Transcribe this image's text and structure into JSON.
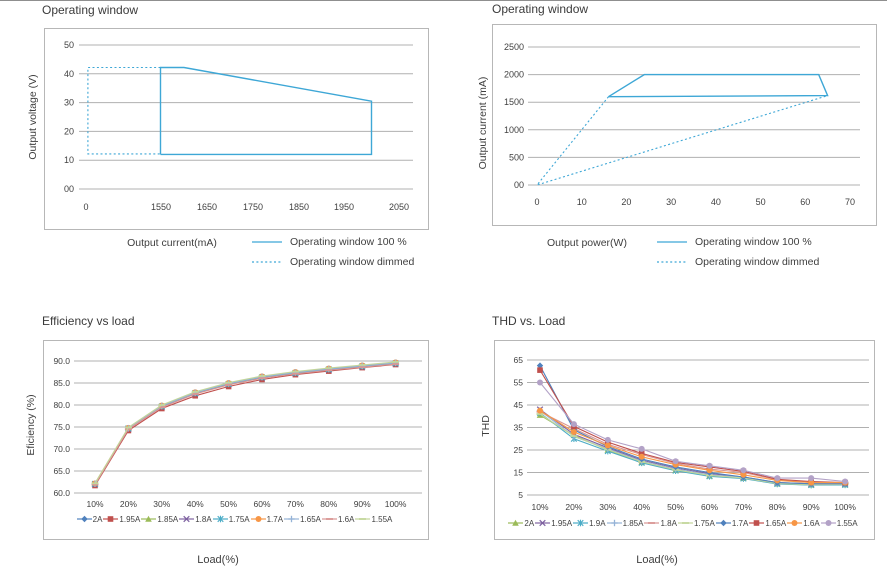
{
  "colors": {
    "accent_blue": "#3EA7D6",
    "grid": "#b0b0b0",
    "box_border": "#b7b7b7",
    "text": "#3f3f3f",
    "top_rule": "#8f8f8f"
  },
  "chart_data": [
    {
      "type": "line",
      "title": "Operating window",
      "xlabel": "Output current(mA)",
      "ylabel": "Output voltage (V)",
      "x_ticks": [
        "0",
        "1550",
        "1650",
        "1750",
        "1850",
        "1950",
        "2050"
      ],
      "x_tick_values": [
        0,
        1550,
        1650,
        1750,
        1850,
        1950,
        2050
      ],
      "y_ticks": [
        "00",
        "10",
        "20",
        "30",
        "40",
        "50"
      ],
      "y_tick_values": [
        0,
        10,
        20,
        30,
        40,
        50
      ],
      "ylim": [
        0,
        50
      ],
      "line_color": "#3EA7D6",
      "legend": [
        {
          "label": "Operating window 100 %",
          "marker": "solid-line",
          "color": "#3EA7D6"
        },
        {
          "label": "Operating window dimmed",
          "marker": "dotted-line",
          "color": "#3EA7D6"
        }
      ],
      "series": [
        {
          "name": "Operating window 100 %",
          "style": "solid",
          "points": [
            [
              1540,
              12
            ],
            [
              1540,
              42.2
            ],
            [
              1600,
              42.2
            ],
            [
              2000,
              30.5
            ],
            [
              2000,
              12
            ],
            [
              1540,
              12
            ]
          ]
        },
        {
          "name": "Operating window dimmed",
          "style": "dotted",
          "points": [
            [
              1540,
              42.2
            ],
            [
              40,
              42.2
            ],
            [
              40,
              12.2
            ],
            [
              1540,
              12.2
            ]
          ]
        }
      ]
    },
    {
      "type": "line",
      "title": "Operating window",
      "xlabel": "Output power(W)",
      "ylabel": "Output current  (mA)",
      "x_ticks": [
        "0",
        "10",
        "20",
        "30",
        "40",
        "50",
        "60",
        "70"
      ],
      "x_tick_values": [
        0,
        10,
        20,
        30,
        40,
        50,
        60,
        70
      ],
      "y_ticks": [
        "00",
        "500",
        "1000",
        "1500",
        "2000",
        "2500"
      ],
      "y_tick_values": [
        0,
        500,
        1000,
        1500,
        2000,
        2500
      ],
      "ylim": [
        0,
        2500
      ],
      "line_color": "#3EA7D6",
      "legend": [
        {
          "label": "Operating window 100 %",
          "marker": "solid-line",
          "color": "#3EA7D6"
        },
        {
          "label": "Operating window dimmed",
          "marker": "dotted-line",
          "color": "#3EA7D6"
        }
      ],
      "series": [
        {
          "name": "Operating window 100 %",
          "style": "solid",
          "points": [
            [
              16,
              1600
            ],
            [
              24,
              2000
            ],
            [
              63,
              2000
            ],
            [
              65,
              1620
            ],
            [
              16,
              1600
            ]
          ]
        },
        {
          "name": "Operating window dimmed",
          "style": "dotted",
          "points": [
            [
              16,
              1600
            ],
            [
              0,
              0
            ],
            [
              65,
              1620
            ]
          ]
        }
      ]
    },
    {
      "type": "line",
      "title": "Efficiency vs load",
      "xlabel": "Load(%)",
      "ylabel": "Eficiency (%)",
      "categories": [
        "10%",
        "20%",
        "30%",
        "40%",
        "50%",
        "60%",
        "70%",
        "80%",
        "90%",
        "100%"
      ],
      "y_ticks": [
        "60.0",
        "65.0",
        "70.0",
        "75.0",
        "80.0",
        "85.0",
        "90.0"
      ],
      "y_tick_values": [
        60,
        65,
        70,
        75,
        80,
        85,
        90
      ],
      "ylim": [
        60,
        90
      ],
      "series": [
        {
          "name": "2A",
          "color": "#4F81BD",
          "marker": "diamond",
          "values": [
            62.0,
            74.6,
            79.6,
            82.6,
            84.7,
            86.2,
            87.2,
            88.0,
            88.7,
            89.4
          ]
        },
        {
          "name": "1.95A",
          "color": "#C0504D",
          "marker": "square",
          "values": [
            61.7,
            74.2,
            79.2,
            82.1,
            84.2,
            85.8,
            86.9,
            87.7,
            88.5,
            89.2
          ]
        },
        {
          "name": "1.85A",
          "color": "#9BBB59",
          "marker": "triangle",
          "values": [
            62.1,
            74.7,
            79.7,
            82.7,
            84.8,
            86.3,
            87.3,
            88.1,
            88.8,
            89.5
          ]
        },
        {
          "name": "1.8A",
          "color": "#8064A2",
          "marker": "x",
          "values": [
            62.0,
            74.6,
            79.6,
            82.6,
            84.7,
            86.2,
            87.2,
            88.0,
            88.7,
            89.4
          ]
        },
        {
          "name": "1.75A",
          "color": "#4BACC6",
          "marker": "asterisk",
          "values": [
            62.1,
            74.7,
            79.7,
            82.7,
            84.8,
            86.3,
            87.3,
            88.1,
            88.8,
            89.5
          ]
        },
        {
          "name": "1.7A",
          "color": "#F79646",
          "marker": "circle",
          "values": [
            62.2,
            74.8,
            79.9,
            82.9,
            85.0,
            86.5,
            87.5,
            88.3,
            89.0,
            89.7
          ]
        },
        {
          "name": "1.65A",
          "color": "#95B3D7",
          "marker": "plus",
          "values": [
            62.1,
            74.7,
            79.8,
            82.8,
            84.9,
            86.4,
            87.4,
            88.2,
            88.9,
            89.6
          ]
        },
        {
          "name": "1.6A",
          "color": "#D99694",
          "marker": "dash",
          "values": [
            61.9,
            74.5,
            79.5,
            82.5,
            84.6,
            86.1,
            87.1,
            87.9,
            88.6,
            89.3
          ]
        },
        {
          "name": "1.55A",
          "color": "#C3D69B",
          "marker": "dash",
          "values": [
            62.2,
            74.9,
            80.0,
            83.0,
            85.1,
            86.6,
            87.6,
            88.4,
            89.1,
            89.8
          ]
        }
      ]
    },
    {
      "type": "line",
      "title": "THD vs. Load",
      "xlabel": "Load(%)",
      "ylabel": "THD",
      "categories": [
        "10%",
        "20%",
        "30%",
        "40%",
        "50%",
        "60%",
        "70%",
        "80%",
        "90%",
        "100%"
      ],
      "y_ticks": [
        "5",
        "15",
        "25",
        "35",
        "45",
        "55",
        "65"
      ],
      "y_tick_values": [
        5,
        15,
        25,
        35,
        45,
        55,
        65
      ],
      "ylim": [
        5,
        65
      ],
      "series": [
        {
          "name": "2A",
          "color": "#9BBB59",
          "marker": "triangle",
          "values": [
            40.5,
            31.5,
            25.0,
            19.5,
            16.0,
            13.5,
            12.4,
            10.0,
            9.5,
            9.6
          ]
        },
        {
          "name": "1.95A",
          "color": "#8064A2",
          "marker": "x",
          "values": [
            43.0,
            32.0,
            26.0,
            20.5,
            17.0,
            14.5,
            13.0,
            10.5,
            10.0,
            10.0
          ]
        },
        {
          "name": "1.9A",
          "color": "#4BACC6",
          "marker": "asterisk",
          "values": [
            41.5,
            30.0,
            24.5,
            19.3,
            15.8,
            13.3,
            12.3,
            9.9,
            9.4,
            9.5
          ]
        },
        {
          "name": "1.85A",
          "color": "#95B3D7",
          "marker": "plus",
          "values": [
            42.5,
            31.0,
            25.5,
            20.0,
            16.5,
            14.0,
            12.8,
            10.3,
            9.8,
            9.8
          ]
        },
        {
          "name": "1.8A",
          "color": "#D99694",
          "marker": "dash",
          "values": [
            42.0,
            34.5,
            27.5,
            23.0,
            19.0,
            16.5,
            15.0,
            11.8,
            10.8,
            10.3
          ]
        },
        {
          "name": "1.75A",
          "color": "#C3D69B",
          "marker": "dash",
          "values": [
            41.0,
            31.2,
            25.2,
            19.7,
            16.2,
            13.7,
            12.6,
            10.1,
            9.6,
            9.7
          ]
        },
        {
          "name": "1.7A",
          "color": "#4F81BD",
          "marker": "diamond",
          "values": [
            62.5,
            34.0,
            26.5,
            21.0,
            17.5,
            15.0,
            13.0,
            10.5,
            10.0,
            10.0
          ]
        },
        {
          "name": "1.65A",
          "color": "#C0504D",
          "marker": "square",
          "values": [
            60.5,
            35.5,
            28.5,
            23.5,
            19.5,
            17.5,
            15.5,
            12.0,
            11.0,
            10.5
          ]
        },
        {
          "name": "1.6A",
          "color": "#F79646",
          "marker": "circle",
          "values": [
            42.5,
            33.0,
            27.0,
            22.0,
            18.5,
            16.0,
            14.0,
            11.5,
            10.5,
            10.5
          ]
        },
        {
          "name": "1.55A",
          "color": "#B3A2C7",
          "marker": "circle",
          "values": [
            55.0,
            36.5,
            29.5,
            25.5,
            20.0,
            18.0,
            16.0,
            12.5,
            12.5,
            11.0
          ]
        }
      ]
    }
  ]
}
